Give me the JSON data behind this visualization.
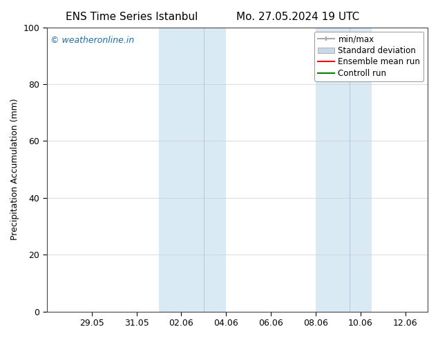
{
  "title_left": "ENS Time Series Istanbul",
  "title_right": "Mo. 27.05.2024 19 UTC",
  "ylabel": "Precipitation Accumulation (mm)",
  "ylim": [
    0,
    100
  ],
  "yticks": [
    0,
    20,
    40,
    60,
    80,
    100
  ],
  "background_color": "#ffffff",
  "plot_bg_color": "#ffffff",
  "watermark_text": "© weatheronline.in",
  "watermark_color": "#1a6faf",
  "legend_items": [
    {
      "label": "min/max",
      "color": "#aaaaaa",
      "lw": 1.5
    },
    {
      "label": "Standard deviation",
      "color": "#c8d8e8",
      "lw": 6
    },
    {
      "label": "Ensemble mean run",
      "color": "#ff0000",
      "lw": 1.5
    },
    {
      "label": "Controll run",
      "color": "#008000",
      "lw": 1.5
    }
  ],
  "shaded_bands": [
    {
      "x_start": "2024-06-01",
      "x_end": "2024-06-03 12:00",
      "color": "#daeaf5",
      "alpha": 1.0
    },
    {
      "x_start": "2024-06-03",
      "x_end": "2024-06-04",
      "color": "#daeaf5",
      "alpha": 1.0
    },
    {
      "x_start": "2024-06-08",
      "x_end": "2024-06-09 12:00",
      "color": "#daeaf5",
      "alpha": 1.0
    },
    {
      "x_start": "2024-06-09",
      "x_end": "2024-06-10 12:00",
      "color": "#daeaf5",
      "alpha": 1.0
    }
  ],
  "x_start": "2024-05-27",
  "x_end": "2024-06-13",
  "xtick_dates": [
    "2024-05-29",
    "2024-05-31",
    "2024-06-02",
    "2024-06-04",
    "2024-06-06",
    "2024-06-08",
    "2024-06-10",
    "2024-06-12"
  ],
  "xtick_labels": [
    "29.05",
    "31.05",
    "02.06",
    "04.06",
    "06.06",
    "08.06",
    "10.06",
    "12.06"
  ],
  "font_size_title": 11,
  "font_size_legend": 8.5,
  "font_size_ticks": 9,
  "font_size_ylabel": 9,
  "font_size_watermark": 9
}
